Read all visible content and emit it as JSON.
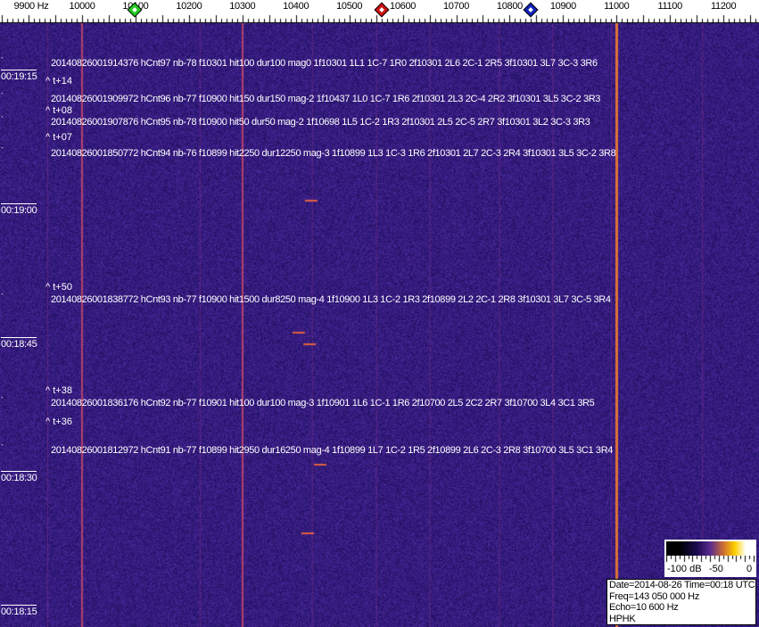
{
  "frequency_axis": {
    "unit_label": "9900 Hz",
    "ticks": [
      "10000",
      "10100",
      "10200",
      "10300",
      "10400",
      "10500",
      "10600",
      "10700",
      "10800",
      "10900",
      "11000",
      "11100",
      "11200"
    ],
    "tick_values": [
      10000,
      10100,
      10200,
      10300,
      10400,
      10500,
      10600,
      10700,
      10800,
      10900,
      11000,
      11100,
      11200
    ],
    "markers": [
      {
        "name": "green-marker",
        "freq": 10098,
        "color": "#22cc22"
      },
      {
        "name": "red-marker",
        "freq": 10561,
        "color": "#cc1111"
      },
      {
        "name": "blue-marker",
        "freq": 10839,
        "color": "#1122bb"
      }
    ]
  },
  "time_axis": {
    "labels": [
      {
        "text": "00:19:15",
        "sec_before_1920": 5
      },
      {
        "text": "00:19:00",
        "sec_before_1920": 20
      },
      {
        "text": "00:18:45",
        "sec_before_1920": 35
      },
      {
        "text": "00:18:30",
        "sec_before_1920": 50
      },
      {
        "text": "00:18:15",
        "sec_before_1920": 65
      }
    ]
  },
  "carrier_lines_hz": [
    10000,
    10300,
    11000
  ],
  "detections": [
    "20140826001914376 hCnt97 nb-78 f10301 hit100 dur100 mag0 1f10301 1L1 1C-7 1R0 2f10301 2L6 2C-1 2R5 3f10301 3L7 3C-3 3R6",
    "20140826001909972 hCnt96 nb-77 f10900 hit150 dur150 mag-2 1f10437 1L0 1C-7 1R6 2f10301 2L3 2C-4 2R2 3f10301 3L5 3C-2 3R3",
    "20140826001907876 hCnt95 nb-78 f10900 hit50 dur50 mag-2 1f10698 1L5 1C-2 1R3 2f10301 2L5 2C-5 2R7 3f10301 3L2 3C-3 3R3",
    "20140826001850772 hCnt94 nb-76 f10899 hit2250 dur12250 mag-3 1f10899 1L3 1C-3 1R6 2f10301 2L7 2C-3 2R4 3f10301 3L5 3C-2 3R8",
    "20140826001838772 hCnt93 nb-77 f10900 hit1500 dur8250 mag-4 1f10900 1L3 1C-2 1R3 2f10899 2L2 2C-1 2R8 3f10301 3L7 3C-5 3R4",
    "20140826001836176 hCnt92 nb-77 f10901 hit100 dur100 mag-3 1f10901 1L6 1C-1 1R6 2f10700 2L5 2C2 2R7 3f10700 3L4 3C1 3R5",
    "20140826001812972 hCnt91 nb-77 f10899 hit2950 dur16250 mag-4 1f10899 1L7 1C-2 1R5 2f10899 2L6 2C-3 2R8 3f10700 3L5 3C1 3R4"
  ],
  "annotations": [
    "^ t+14",
    "^ t+08",
    "^ t+07",
    "^ t+50",
    "^ t+38",
    "^ t+36"
  ],
  "color_scale": {
    "labels": [
      "-100 dB",
      "-50",
      "0"
    ]
  },
  "info": {
    "date_time": "Date=2014-08-26 Time=00:18 UTC",
    "freq": "Freq=143 050 000 Hz",
    "echo": "Echo=10 600 Hz",
    "station": "HPHK"
  }
}
